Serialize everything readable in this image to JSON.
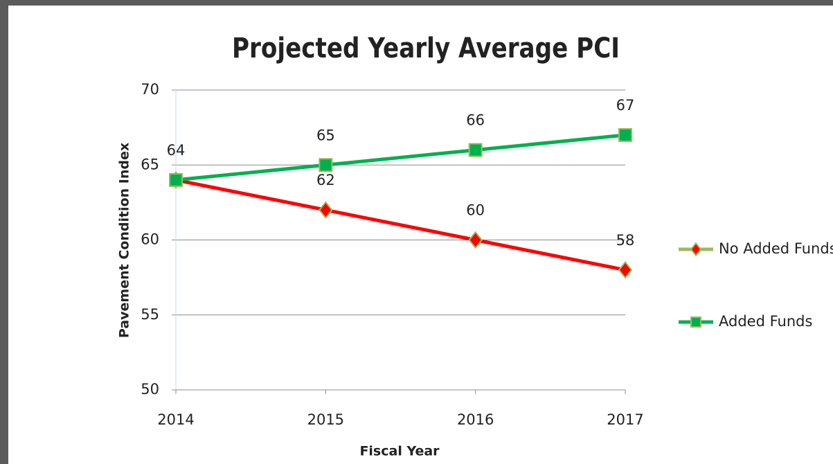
{
  "chart_data": {
    "type": "line",
    "title": "Projected Yearly Average PCI",
    "x_label": "Fiscal Year",
    "y_label": "Pavement Condition Index",
    "categories": [
      "2014",
      "2015",
      "2016",
      "2017"
    ],
    "series": [
      {
        "name": "No Added Funds",
        "color": "#ff0000",
        "marker": "diamond",
        "marker_edge": "#9bbb59",
        "values": [
          64,
          62,
          60,
          58
        ]
      },
      {
        "name": "Added Funds",
        "color": "#00b050",
        "marker": "square",
        "marker_edge": "#9bbb59",
        "values": [
          64,
          65,
          66,
          67
        ]
      }
    ],
    "ylim": [
      50,
      70
    ],
    "yticks": [
      50,
      55,
      60,
      65,
      70
    ],
    "grid": true,
    "legend": "right"
  }
}
